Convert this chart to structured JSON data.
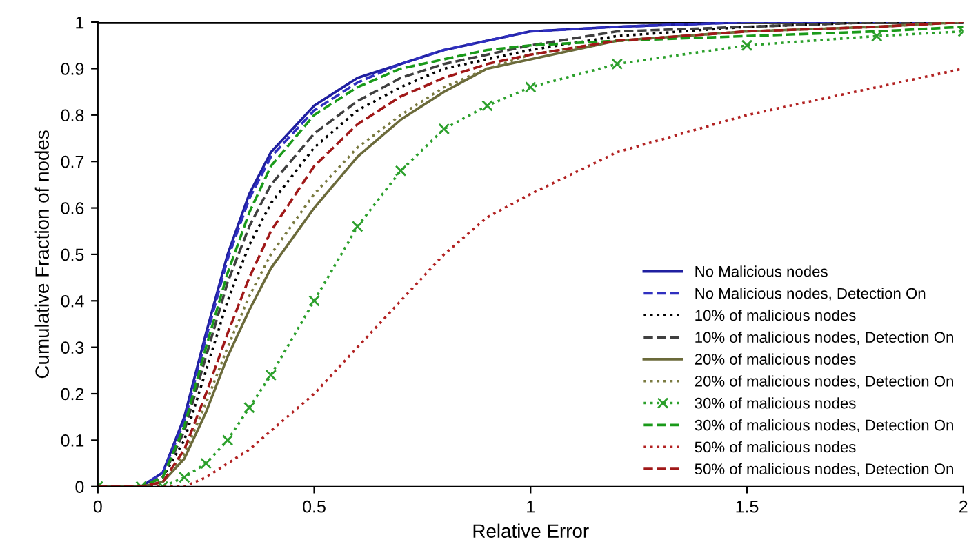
{
  "chart_data": {
    "type": "line",
    "xlabel": "Relative Error",
    "ylabel": "Cumulative Fraction of nodes",
    "xlim": [
      0,
      2
    ],
    "ylim": [
      0,
      1
    ],
    "xticks": [
      0,
      0.5,
      1,
      1.5,
      2
    ],
    "yticks": [
      0,
      0.1,
      0.2,
      0.3,
      0.4,
      0.5,
      0.6,
      0.7,
      0.8,
      0.9,
      1
    ],
    "grid": false,
    "legend": "bottom right",
    "ref_lines": [
      {
        "axis": "y",
        "value": 1,
        "color": "#000000"
      }
    ],
    "x": [
      0,
      0.1,
      0.15,
      0.2,
      0.25,
      0.3,
      0.35,
      0.4,
      0.5,
      0.6,
      0.7,
      0.8,
      0.9,
      1.0,
      1.2,
      1.5,
      1.8,
      2.0
    ],
    "series": [
      {
        "name": "No Malicious nodes",
        "color": "#1f1fa0",
        "line_style": "solid",
        "values": [
          0,
          0,
          0.03,
          0.15,
          0.33,
          0.5,
          0.63,
          0.72,
          0.82,
          0.88,
          0.91,
          0.94,
          0.96,
          0.98,
          0.99,
          1.0,
          1.0,
          1.0
        ]
      },
      {
        "name": "No Malicious nodes, Detection On",
        "color": "#3030c0",
        "line_style": "dashed",
        "values": [
          0,
          0,
          0.03,
          0.14,
          0.32,
          0.49,
          0.62,
          0.71,
          0.81,
          0.87,
          0.91,
          0.94,
          0.96,
          0.98,
          0.99,
          1.0,
          1.0,
          1.0
        ]
      },
      {
        "name": "10% of malicious nodes",
        "color": "#000000",
        "line_style": "dotted",
        "values": [
          0,
          0,
          0.02,
          0.1,
          0.25,
          0.4,
          0.52,
          0.61,
          0.73,
          0.81,
          0.86,
          0.9,
          0.92,
          0.94,
          0.97,
          0.99,
          1.0,
          1.0
        ]
      },
      {
        "name": "10% of malicious nodes, Detection On",
        "color": "#404040",
        "line_style": "dashed",
        "values": [
          0,
          0,
          0.02,
          0.12,
          0.28,
          0.44,
          0.56,
          0.65,
          0.76,
          0.83,
          0.88,
          0.91,
          0.93,
          0.95,
          0.98,
          0.99,
          1.0,
          1.0
        ]
      },
      {
        "name": "20% of malicious nodes",
        "color": "#6b6a3a",
        "line_style": "solid",
        "values": [
          0,
          0,
          0.01,
          0.06,
          0.16,
          0.28,
          0.38,
          0.47,
          0.6,
          0.71,
          0.79,
          0.85,
          0.9,
          0.92,
          0.96,
          0.98,
          0.99,
          1.0
        ]
      },
      {
        "name": "20% of malicious nodes, Detection On",
        "color": "#7a7a40",
        "line_style": "dotted",
        "values": [
          0,
          0,
          0.01,
          0.07,
          0.18,
          0.3,
          0.41,
          0.5,
          0.63,
          0.73,
          0.8,
          0.86,
          0.9,
          0.93,
          0.96,
          0.98,
          0.99,
          1.0
        ]
      },
      {
        "name": "30% of malicious nodes",
        "color": "#2ca02c",
        "line_style": "dotted",
        "marker": "cross",
        "values": [
          0,
          0,
          0,
          0.02,
          0.05,
          0.1,
          0.17,
          0.24,
          0.4,
          0.56,
          0.68,
          0.77,
          0.82,
          0.86,
          0.91,
          0.95,
          0.97,
          0.98
        ]
      },
      {
        "name": "30% of malicious nodes, Detection On",
        "color": "#1a9a1a",
        "line_style": "dashed",
        "values": [
          0,
          0,
          0.02,
          0.13,
          0.3,
          0.46,
          0.59,
          0.69,
          0.8,
          0.86,
          0.9,
          0.92,
          0.94,
          0.95,
          0.96,
          0.97,
          0.98,
          0.99
        ]
      },
      {
        "name": "50% of malicious nodes",
        "color": "#b22222",
        "line_style": "dotted",
        "values": [
          0,
          0,
          0,
          0,
          0.02,
          0.05,
          0.08,
          0.12,
          0.2,
          0.3,
          0.4,
          0.5,
          0.58,
          0.63,
          0.72,
          0.8,
          0.86,
          0.9
        ]
      },
      {
        "name": "50% of malicious nodes, Detection On",
        "color": "#a01818",
        "line_style": "dashed",
        "values": [
          0,
          0,
          0.01,
          0.08,
          0.2,
          0.33,
          0.45,
          0.55,
          0.69,
          0.78,
          0.84,
          0.88,
          0.91,
          0.93,
          0.96,
          0.98,
          0.99,
          1.0
        ]
      }
    ]
  }
}
